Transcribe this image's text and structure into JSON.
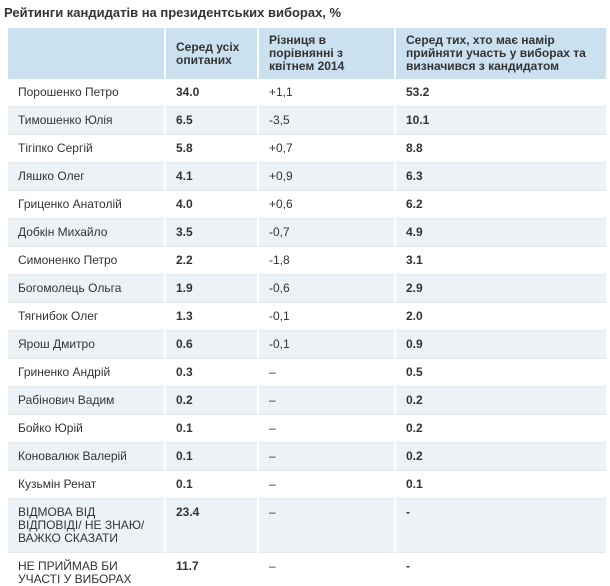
{
  "title": "Рейтинги кандидатів на президентських виборах, %",
  "colors": {
    "header_bg": "#cbe1f0",
    "row_alt_bg": "#edf2f7",
    "row_border": "#e3e8ec",
    "text": "#333333"
  },
  "table": {
    "columns": [
      "",
      "Серед усіх опитаних",
      "Різниця в порівнянні з квітнем 2014",
      "Серед тих, хто має намір прийняти участь у виборах та визначився з кандидатом"
    ],
    "rows": [
      {
        "name": "Порошенко Петро",
        "among_all": "34.0",
        "diff_april": "+1,1",
        "among_decided": "53.2"
      },
      {
        "name": "Тимошенко Юлія",
        "among_all": "6.5",
        "diff_april": "-3,5",
        "among_decided": "10.1"
      },
      {
        "name": "Тігіпко Сергій",
        "among_all": "5.8",
        "diff_april": "+0,7",
        "among_decided": "8.8"
      },
      {
        "name": "Ляшко Олег",
        "among_all": "4.1",
        "diff_april": "+0,9",
        "among_decided": "6.3"
      },
      {
        "name": "Гриценко Анатолій",
        "among_all": "4.0",
        "diff_april": "+0,6",
        "among_decided": "6.2"
      },
      {
        "name": "Добкін Михайло",
        "among_all": "3.5",
        "diff_april": "-0,7",
        "among_decided": "4.9"
      },
      {
        "name": "Симоненко Петро",
        "among_all": "2.2",
        "diff_april": "-1,8",
        "among_decided": "3.1"
      },
      {
        "name": "Богомолець Ольга",
        "among_all": "1.9",
        "diff_april": "-0,6",
        "among_decided": "2.9"
      },
      {
        "name": "Тягнибок Олег",
        "among_all": "1.3",
        "diff_april": "-0,1",
        "among_decided": "2.0"
      },
      {
        "name": "Ярош Дмитро",
        "among_all": "0.6",
        "diff_april": "-0,1",
        "among_decided": "0.9"
      },
      {
        "name": "Гриненко Андрій",
        "among_all": "0.3",
        "diff_april": "–",
        "among_decided": "0.5"
      },
      {
        "name": "Рабінович Вадим",
        "among_all": "0.2",
        "diff_april": "–",
        "among_decided": "0.2"
      },
      {
        "name": "Бойко Юрій",
        "among_all": "0.1",
        "diff_april": "–",
        "among_decided": "0.2"
      },
      {
        "name": "Коновалюк Валерій",
        "among_all": "0.1",
        "diff_april": "–",
        "among_decided": "0.2"
      },
      {
        "name": "Кузьмін Ренат",
        "among_all": "0.1",
        "diff_april": "–",
        "among_decided": "0.1"
      },
      {
        "name": "ВІДМОВА ВІД ВІДПОВІДІ/ НЕ ЗНАЮ/ ВАЖКО СКАЗАТИ",
        "among_all": "23.4",
        "diff_april": "–",
        "among_decided": "-"
      },
      {
        "name": "НЕ ПРИЙМАВ БИ УЧАСТІ У ВИБОРАХ",
        "among_all": "11.7",
        "diff_april": "–",
        "among_decided": "-"
      }
    ]
  }
}
